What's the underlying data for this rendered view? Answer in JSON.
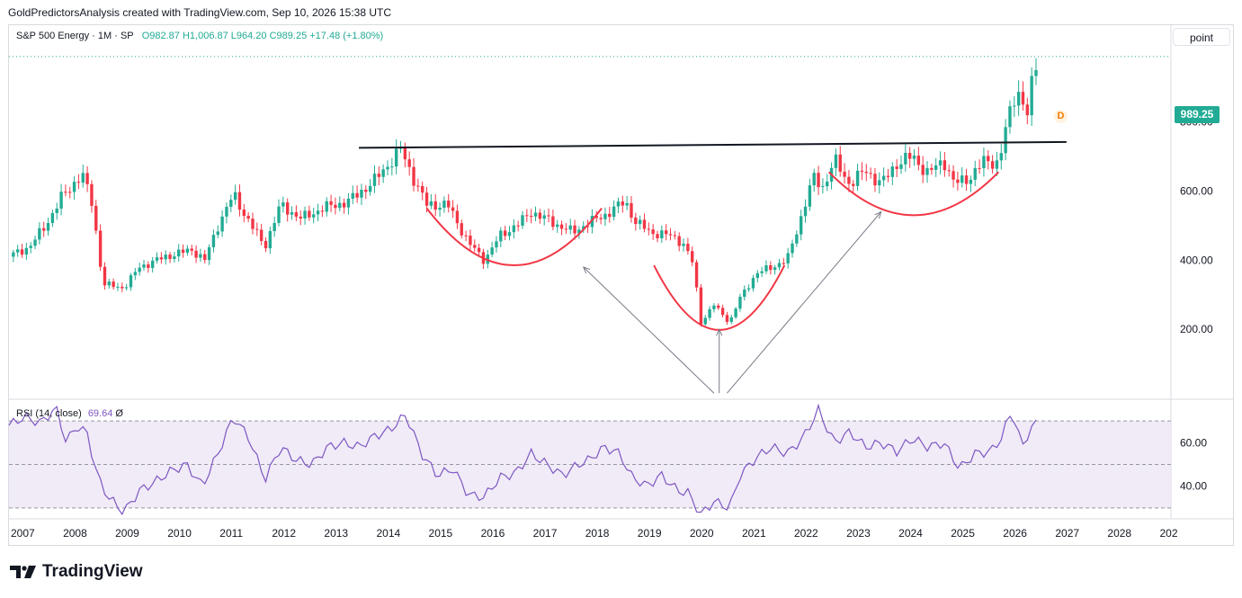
{
  "header": {
    "credit": "GoldPredictorsAnalysis created with TradingView.com, Sep 10, 2026 15:38 UTC"
  },
  "legend": {
    "symbol": "S&P 500 Energy · 1M · SP",
    "ohlc": "O982.87  H1,006.87  L964.20  C989.25  +17.48 (+1.80%)"
  },
  "scale_button": "point",
  "last_price_badge": "989.25",
  "dividend_marker": "D",
  "rsi_legend": {
    "label": "RSI (14, close)",
    "value": "69.64",
    "settings_icon": "Ø"
  },
  "footer": {
    "brand": "TradingView"
  },
  "colors": {
    "up": "#22ab94",
    "down": "#f23645",
    "rsi_line": "#7e57c2",
    "rsi_band": "#ede7f6",
    "trendline": "#131722",
    "arc": "#f23645",
    "arrow": "#787b86"
  },
  "chart_data": [
    {
      "type": "candlestick",
      "title": "S&P 500 Energy",
      "interval": "1M",
      "price_axis": {
        "ylim": [
          0,
          1080
        ],
        "ticks": [
          200,
          400,
          600,
          800
        ],
        "tick_labels": [
          "200.00",
          "400.00",
          "600.00",
          "800.00"
        ]
      },
      "time_axis": {
        "xlim": [
          2007.0,
          2029.25
        ],
        "labels": [
          "2007",
          "2008",
          "2009",
          "2010",
          "2011",
          "2012",
          "2013",
          "2014",
          "2015",
          "2016",
          "2017",
          "2018",
          "2019",
          "2020",
          "2021",
          "2022",
          "2023",
          "2024",
          "2025",
          "2026",
          "2027",
          "2028",
          "202"
        ]
      },
      "path_points": [
        [
          2007.0,
          410
        ],
        [
          2007.4,
          440
        ],
        [
          2007.7,
          500
        ],
        [
          2008.0,
          580
        ],
        [
          2008.4,
          650
        ],
        [
          2008.6,
          560
        ],
        [
          2008.8,
          330
        ],
        [
          2009.2,
          320
        ],
        [
          2009.5,
          380
        ],
        [
          2010.0,
          410
        ],
        [
          2010.5,
          430
        ],
        [
          2010.75,
          400
        ],
        [
          2011.0,
          500
        ],
        [
          2011.3,
          590
        ],
        [
          2011.6,
          510
        ],
        [
          2011.9,
          440
        ],
        [
          2012.2,
          560
        ],
        [
          2012.6,
          520
        ],
        [
          2013.0,
          550
        ],
        [
          2013.5,
          570
        ],
        [
          2014.0,
          630
        ],
        [
          2014.5,
          720
        ],
        [
          2014.8,
          620
        ],
        [
          2015.0,
          560
        ],
        [
          2015.4,
          560
        ],
        [
          2015.8,
          450
        ],
        [
          2016.1,
          400
        ],
        [
          2016.4,
          470
        ],
        [
          2016.8,
          510
        ],
        [
          2017.0,
          540
        ],
        [
          2017.4,
          510
        ],
        [
          2017.8,
          480
        ],
        [
          2018.0,
          500
        ],
        [
          2018.4,
          530
        ],
        [
          2018.8,
          570
        ],
        [
          2019.0,
          510
        ],
        [
          2019.3,
          480
        ],
        [
          2019.7,
          470
        ],
        [
          2019.9,
          450
        ],
        [
          2020.1,
          390
        ],
        [
          2020.25,
          220
        ],
        [
          2020.5,
          270
        ],
        [
          2020.8,
          220
        ],
        [
          2021.0,
          290
        ],
        [
          2021.3,
          360
        ],
        [
          2021.6,
          380
        ],
        [
          2021.9,
          400
        ],
        [
          2022.2,
          540
        ],
        [
          2022.4,
          640
        ],
        [
          2022.6,
          610
        ],
        [
          2022.8,
          690
        ],
        [
          2023.1,
          620
        ],
        [
          2023.4,
          660
        ],
        [
          2023.7,
          620
        ],
        [
          2024.0,
          680
        ],
        [
          2024.3,
          700
        ],
        [
          2024.6,
          650
        ],
        [
          2024.9,
          690
        ],
        [
          2025.1,
          620
        ],
        [
          2025.4,
          640
        ],
        [
          2025.7,
          690
        ],
        [
          2025.95,
          680
        ],
        [
          2026.15,
          820
        ],
        [
          2026.3,
          900
        ],
        [
          2026.5,
          820
        ],
        [
          2026.6,
          920
        ],
        [
          2026.7,
          989.25
        ]
      ],
      "last": {
        "open": 982.87,
        "high": 1006.87,
        "low": 964.2,
        "close": 989.25,
        "change": 17.48,
        "change_pct": 1.8
      },
      "annotations": {
        "resistance_line": [
          [
            2013.7,
            725
          ],
          [
            2027.25,
            742
          ]
        ],
        "arcs": [
          {
            "x": [
              2015.0,
              2018.35
            ],
            "top": 550,
            "bottom": 385
          },
          {
            "x": [
              2019.35,
              2021.85
            ],
            "top": 385,
            "bottom": 198
          },
          {
            "x": [
              2022.7,
              2025.95
            ],
            "top": 655,
            "bottom": 530
          }
        ],
        "arrows": [
          {
            "from": [
              2020.5,
              15
            ],
            "to": [
              2018.0,
              380
            ]
          },
          {
            "from": [
              2020.6,
              15
            ],
            "to": [
              2020.6,
              200
            ]
          },
          {
            "from": [
              2020.75,
              15
            ],
            "to": [
              2023.7,
              540
            ]
          }
        ]
      }
    },
    {
      "type": "line",
      "title": "RSI (14, close)",
      "ylim": [
        25,
        80
      ],
      "ticks": [
        40,
        60
      ],
      "tick_labels": [
        "40.00",
        "60.00"
      ],
      "bands": {
        "upper": 70,
        "middle": 50,
        "lower": 30
      },
      "path_points": [
        [
          2007.0,
          68
        ],
        [
          2007.3,
          72
        ],
        [
          2007.6,
          69
        ],
        [
          2007.9,
          76
        ],
        [
          2008.1,
          60
        ],
        [
          2008.3,
          68
        ],
        [
          2008.5,
          64
        ],
        [
          2008.7,
          44
        ],
        [
          2008.9,
          35
        ],
        [
          2009.2,
          28
        ],
        [
          2009.5,
          38
        ],
        [
          2009.8,
          42
        ],
        [
          2010.1,
          47
        ],
        [
          2010.4,
          50
        ],
        [
          2010.7,
          40
        ],
        [
          2011.0,
          55
        ],
        [
          2011.3,
          72
        ],
        [
          2011.6,
          62
        ],
        [
          2011.9,
          43
        ],
        [
          2012.2,
          58
        ],
        [
          2012.5,
          52
        ],
        [
          2012.8,
          50
        ],
        [
          2013.1,
          58
        ],
        [
          2013.4,
          60
        ],
        [
          2013.7,
          58
        ],
        [
          2014.0,
          63
        ],
        [
          2014.3,
          66
        ],
        [
          2014.6,
          73
        ],
        [
          2014.9,
          55
        ],
        [
          2015.2,
          45
        ],
        [
          2015.5,
          48
        ],
        [
          2015.8,
          36
        ],
        [
          2016.1,
          35
        ],
        [
          2016.4,
          44
        ],
        [
          2016.7,
          46
        ],
        [
          2017.0,
          55
        ],
        [
          2017.3,
          50
        ],
        [
          2017.6,
          45
        ],
        [
          2017.9,
          50
        ],
        [
          2018.1,
          52
        ],
        [
          2018.4,
          58
        ],
        [
          2018.7,
          55
        ],
        [
          2018.9,
          45
        ],
        [
          2019.2,
          40
        ],
        [
          2019.5,
          45
        ],
        [
          2019.8,
          38
        ],
        [
          2020.0,
          37
        ],
        [
          2020.25,
          27
        ],
        [
          2020.5,
          33
        ],
        [
          2020.8,
          30
        ],
        [
          2021.0,
          45
        ],
        [
          2021.3,
          53
        ],
        [
          2021.6,
          58
        ],
        [
          2021.9,
          55
        ],
        [
          2022.2,
          62
        ],
        [
          2022.5,
          75
        ],
        [
          2022.8,
          60
        ],
        [
          2023.1,
          65
        ],
        [
          2023.4,
          58
        ],
        [
          2023.7,
          60
        ],
        [
          2024.0,
          56
        ],
        [
          2024.3,
          62
        ],
        [
          2024.6,
          58
        ],
        [
          2024.9,
          60
        ],
        [
          2025.2,
          48
        ],
        [
          2025.5,
          55
        ],
        [
          2025.8,
          56
        ],
        [
          2026.0,
          62
        ],
        [
          2026.2,
          75
        ],
        [
          2026.4,
          58
        ],
        [
          2026.55,
          66
        ],
        [
          2026.7,
          69.64
        ]
      ]
    }
  ]
}
